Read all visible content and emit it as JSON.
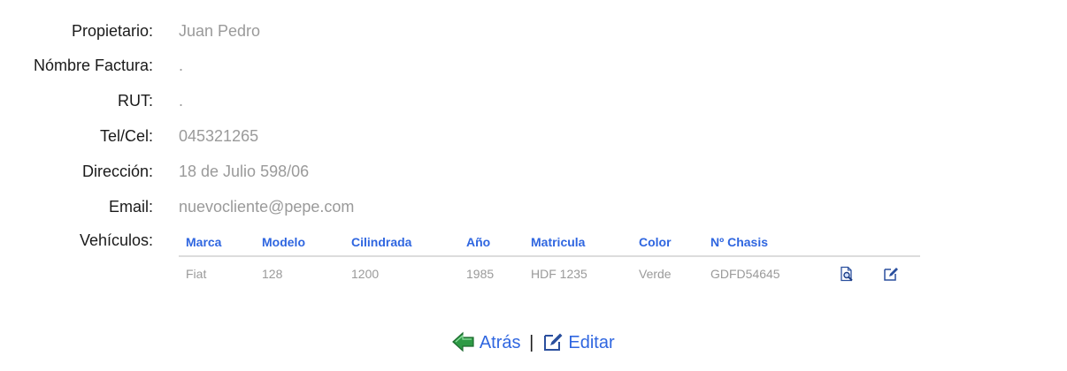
{
  "fields": [
    {
      "label": "Propietario:",
      "value": "Juan Pedro"
    },
    {
      "label": "Nómbre Factura:",
      "value": "."
    },
    {
      "label": "RUT:",
      "value": "."
    },
    {
      "label": "Tel/Cel:",
      "value": "045321265"
    },
    {
      "label": "Dirección:",
      "value": "18 de Julio 598/06"
    },
    {
      "label": "Email:",
      "value": "nuevocliente@pepe.com"
    }
  ],
  "vehicles": {
    "label": "Vehículos:",
    "headers": [
      "Marca",
      "Modelo",
      "Cilindrada",
      "Año",
      "Matricula",
      "Color",
      "Nº Chasis"
    ],
    "rows": [
      {
        "cells": [
          "Fiat",
          "128",
          "1200",
          "1985",
          "HDF 1235",
          "Verde",
          "GDFD54645"
        ],
        "view_icon": "view-document-icon",
        "edit_icon": "edit-icon"
      }
    ]
  },
  "nav": {
    "back_label": "Atrás",
    "separator": "|",
    "edit_label": "Editar",
    "back_icon": "back-arrow-icon",
    "edit_icon": "edit-pencil-icon"
  },
  "colors": {
    "label": "#1a1a1a",
    "value": "#9a9a9a",
    "accent": "#2f66e0",
    "back_arrow": "#2e9a45"
  }
}
